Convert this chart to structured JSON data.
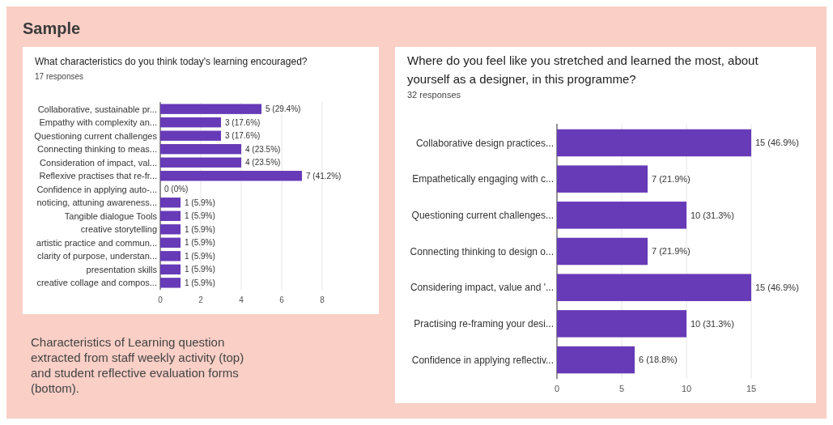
{
  "chart_data": [
    {
      "type": "other",
      "title": "Sample",
      "annotations": [
        "Characteristics of Learning question extracted from staff weekly activity (top) and student reflective evaluation forms (bottom)."
      ]
    },
    {
      "type": "bar",
      "orientation": "horizontal",
      "title": "What characteristics do you think today's learning encouraged?",
      "subtitle": "17 responses",
      "categories": [
        "Collaborative, sustainable pr...",
        "Empathy with complexity an...",
        "Questioning current challenges",
        "Connecting thinking to meas...",
        "Consideration of impact, val...",
        "Reflexive practises that re-fr...",
        "Confidence in applying auto-...",
        "noticing, attuning awareness...",
        "Tangible dialogue Tools",
        "creative storytelling",
        "artistic practice and commun...",
        "clarity of purpose, understan...",
        "presentation skills",
        "creative collage and compos..."
      ],
      "values": [
        5,
        3,
        3,
        4,
        4,
        7,
        0,
        1,
        1,
        1,
        1,
        1,
        1,
        1
      ],
      "value_labels": [
        "5 (29.4%)",
        "3 (17.6%)",
        "3 (17.6%)",
        "4 (23.5%)",
        "4 (23.5%)",
        "7 (41.2%)",
        "0 (0%)",
        "1 (5.9%)",
        "1 (5.9%)",
        "1 (5.9%)",
        "1 (5.9%)",
        "1 (5.9%)",
        "1 (5.9%)",
        "1 (5.9%)"
      ],
      "color": "#673ab7",
      "xlim": [
        0,
        8
      ],
      "xticks": [
        0,
        2,
        4,
        6,
        8
      ],
      "grid": "x"
    },
    {
      "type": "bar",
      "orientation": "horizontal",
      "title": "Where do you feel like you stretched and learned the most, about yourself as a designer, in this programme?",
      "subtitle": "32 responses",
      "categories": [
        "Collaborative design practices...",
        "Empathetically engaging with c...",
        "Questioning current challenges...",
        "Connecting thinking to design o...",
        "Considering impact, value and '...",
        "Practising re-framing your desi...",
        "Confidence in applying reflectiv..."
      ],
      "values": [
        15,
        7,
        10,
        7,
        15,
        10,
        6
      ],
      "value_labels": [
        "15 (46.9%)",
        "7 (21.9%)",
        "10 (31.3%)",
        "7 (21.9%)",
        "15 (46.9%)",
        "10 (31.3%)",
        "6 (18.8%)"
      ],
      "color": "#673ab7",
      "xlim": [
        0,
        15
      ],
      "xticks": [
        0,
        5,
        10,
        15
      ],
      "grid": "x"
    }
  ]
}
